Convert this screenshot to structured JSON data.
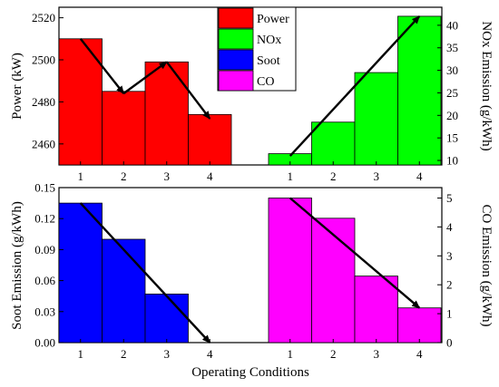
{
  "chart_data": [
    {
      "type": "bar",
      "panel": "top",
      "categories": [
        "1",
        "2",
        "3",
        "4"
      ],
      "series": [
        {
          "name": "Power",
          "axis": "left",
          "values": [
            2510,
            2485,
            2499,
            2474
          ],
          "color": "#ff0000",
          "trend": [
            [
              1,
              2510
            ],
            [
              2,
              2484
            ],
            [
              3,
              2499
            ],
            [
              4,
              2472
            ]
          ]
        },
        {
          "name": "NOx",
          "axis": "right",
          "values": [
            11.5,
            18.5,
            29.5,
            42
          ],
          "color": "#00ff00",
          "trend": [
            [
              1,
              11
            ],
            [
              4,
              42
            ]
          ]
        }
      ],
      "ylabel_left": "Power (kW)",
      "ylim_left": [
        2450,
        2525
      ],
      "yticks_left": [
        "2460",
        "2480",
        "2500",
        "2520"
      ],
      "ylabel_right": "NOx Emission (g/kWh)",
      "ylim_right": [
        9,
        44
      ],
      "yticks_right": [
        "10",
        "15",
        "20",
        "25",
        "30",
        "35",
        "40"
      ],
      "legend": [
        "Power",
        "NOx",
        "Soot",
        "CO"
      ],
      "legend_position": "top-center",
      "grid": false
    },
    {
      "type": "bar",
      "panel": "bottom",
      "categories": [
        "1",
        "2",
        "3",
        "4"
      ],
      "series": [
        {
          "name": "Soot",
          "axis": "left",
          "values": [
            0.135,
            0.1,
            0.047,
            0
          ],
          "color": "#0000ff",
          "trend": [
            [
              1,
              0.135
            ],
            [
              4,
              0.0
            ]
          ]
        },
        {
          "name": "CO",
          "axis": "right",
          "values": [
            5.0,
            4.3,
            2.3,
            1.2
          ],
          "color": "#ff00ff",
          "trend": [
            [
              1,
              5.0
            ],
            [
              4,
              1.2
            ]
          ]
        }
      ],
      "ylabel_left": "Soot Emission (g/kWh)",
      "ylim_left": [
        0,
        0.15
      ],
      "yticks_left": [
        "0.00",
        "0.03",
        "0.06",
        "0.09",
        "0.12",
        "0.15"
      ],
      "ylabel_right": "CO Emission (g/kWh)",
      "ylim_right": [
        0,
        5.36
      ],
      "yticks_right": [
        "0",
        "1",
        "2",
        "3",
        "4",
        "5"
      ],
      "xlabel": "Operating Conditions",
      "grid": false
    }
  ]
}
